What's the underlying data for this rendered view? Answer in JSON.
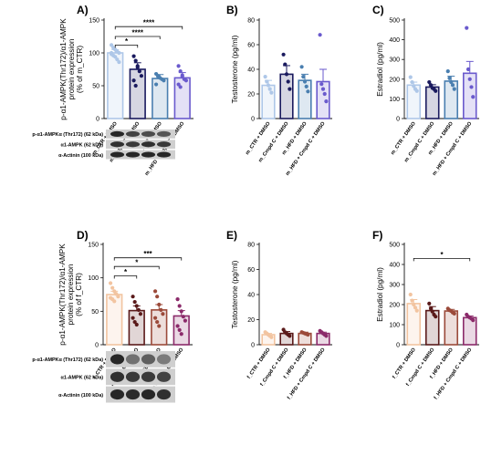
{
  "chart_data": [
    {
      "panel": "A)",
      "type": "bar",
      "ylabel": "p-α1-AMPK(Thr172)/α1-AMPK protein expression (% of m_CTR)",
      "ylim": [
        0,
        150
      ],
      "yticks": [
        0,
        50,
        100,
        150
      ],
      "categories": [
        "m_CTR + DMSO",
        "m_Cmpd C + DMSO",
        "m_HFD + DMSO",
        "m_HFD + Cmpd C + DMSO"
      ],
      "values": [
        100,
        75,
        61,
        62
      ],
      "errors": [
        5,
        10,
        6,
        8
      ],
      "colors": [
        "#aec7e8",
        "#1a1a5e",
        "#4a7fb0",
        "#6a5acd"
      ],
      "points": [
        [
          112,
          108,
          105,
          102,
          100,
          98,
          96,
          94,
          90,
          86,
          100
        ],
        [
          95,
          88,
          78,
          72,
          65,
          58,
          50,
          80
        ],
        [
          68,
          64,
          62,
          60,
          58,
          52,
          65
        ],
        [
          80,
          72,
          66,
          60,
          58,
          52,
          48,
          64
        ]
      ],
      "significance": [
        {
          "from": 0,
          "to": 3,
          "label": "****",
          "y": 140
        },
        {
          "from": 0,
          "to": 2,
          "label": "****",
          "y": 125
        },
        {
          "from": 0,
          "to": 1,
          "label": "*",
          "y": 112
        }
      ],
      "blot": {
        "rows": [
          "p-α1-AMPKα (Thr172) (62 kDa)",
          "α1-AMPK (62 kDa)",
          "α-Actinin (100 kDa)"
        ]
      }
    },
    {
      "panel": "B)",
      "type": "bar",
      "ylabel": "Testosterone (pg/ml)",
      "ylim": [
        0,
        80
      ],
      "yticks": [
        0,
        20,
        40,
        60,
        80
      ],
      "categories": [
        "m_CTR + DMSO",
        "m_Cmpd C + DMSO",
        "m_HFD + DMSO",
        "m_HFD + Cmpd C + DMSO"
      ],
      "values": [
        27,
        36,
        31,
        30
      ],
      "errors": [
        4,
        7,
        5,
        10
      ],
      "colors": [
        "#aec7e8",
        "#1a1a5e",
        "#4a7fb0",
        "#6a5acd"
      ],
      "points": [
        [
          34,
          30,
          27,
          24,
          21
        ],
        [
          52,
          44,
          36,
          30,
          24
        ],
        [
          42,
          34,
          30,
          26,
          22
        ],
        [
          68,
          28,
          24,
          20,
          14
        ]
      ],
      "significance": []
    },
    {
      "panel": "C)",
      "type": "bar",
      "ylabel": "Estradiol (pg/ml)",
      "ylim": [
        0,
        500
      ],
      "yticks": [
        0,
        100,
        200,
        300,
        400,
        500
      ],
      "categories": [
        "m_CTR + DMSO",
        "m_Cmpd C + DMSO",
        "m_HFD + DMSO",
        "m_HFD + Cmpd C + DMSO"
      ],
      "values": [
        170,
        160,
        190,
        230
      ],
      "errors": [
        15,
        12,
        25,
        60
      ],
      "colors": [
        "#aec7e8",
        "#1a1a5e",
        "#4a7fb0",
        "#6a5acd"
      ],
      "points": [
        [
          210,
          185,
          165,
          150,
          140
        ],
        [
          185,
          170,
          155,
          150,
          140
        ],
        [
          240,
          205,
          185,
          170,
          150
        ],
        [
          460,
          250,
          200,
          160,
          110
        ]
      ],
      "significance": []
    },
    {
      "panel": "D)",
      "type": "bar",
      "ylabel": "p-α1-AMPK(Thr172)/α1-AMPK protein expression (% of f_CTR)",
      "ylim": [
        0,
        150
      ],
      "yticks": [
        0,
        50,
        100,
        150
      ],
      "categories": [
        "f_CTR + DMSO",
        "f_Cmpd C + DMSO",
        "f_HFD + DMSO",
        "f_HFD + Cmpd C + DMSO"
      ],
      "values": [
        75,
        51,
        52,
        43
      ],
      "errors": [
        5,
        7,
        8,
        8
      ],
      "colors": [
        "#f2c4a0",
        "#5a1a1a",
        "#9b4a3a",
        "#8b2a6a"
      ],
      "points": [
        [
          92,
          85,
          80,
          76,
          72,
          70,
          68,
          65
        ],
        [
          72,
          64,
          58,
          52,
          46,
          40,
          34,
          30
        ],
        [
          80,
          72,
          60,
          52,
          46,
          40,
          34,
          28
        ],
        [
          68,
          58,
          50,
          42,
          36,
          28,
          22,
          16
        ]
      ],
      "significance": [
        {
          "from": 0,
          "to": 3,
          "label": "***",
          "y": 130
        },
        {
          "from": 0,
          "to": 2,
          "label": "*",
          "y": 117
        },
        {
          "from": 0,
          "to": 1,
          "label": "*",
          "y": 103
        }
      ],
      "blot": {
        "rows": [
          "p-α1-AMPKα (Thr172) (62 kDa)",
          "α1-AMPK (62 kDa)",
          "α-Actinin (100 kDa)"
        ]
      }
    },
    {
      "panel": "E)",
      "type": "bar",
      "ylabel": "Testosterone (pg/ml)",
      "ylim": [
        0,
        80
      ],
      "yticks": [
        0,
        20,
        40,
        60,
        80
      ],
      "categories": [
        "f_CTR + DMSO",
        "f_Cmpd C + DMSO",
        "f_HFD + DMSO",
        "f_HFD + Cmpd C + DMSO"
      ],
      "values": [
        8,
        9,
        9,
        9
      ],
      "errors": [
        1,
        1.5,
        1,
        1
      ],
      "colors": [
        "#f2c4a0",
        "#5a1a1a",
        "#9b4a3a",
        "#8b2a6a"
      ],
      "points": [
        [
          10,
          9,
          8,
          7,
          6
        ],
        [
          12,
          10,
          9,
          8,
          7
        ],
        [
          10,
          9.5,
          9,
          8.5,
          8
        ],
        [
          11,
          10,
          9,
          8,
          7
        ]
      ],
      "significance": []
    },
    {
      "panel": "F)",
      "type": "bar",
      "ylabel": "Estradiol (pg/ml)",
      "ylim": [
        0,
        500
      ],
      "yticks": [
        0,
        100,
        200,
        300,
        400,
        500
      ],
      "categories": [
        "f_CTR + DMSO",
        "f_Cmpd C + DMSO",
        "f_HFD + DMSO",
        "f_HFD + Cmpd C + DMSO"
      ],
      "values": [
        205,
        170,
        168,
        135
      ],
      "errors": [
        20,
        20,
        8,
        8
      ],
      "colors": [
        "#f2c4a0",
        "#5a1a1a",
        "#9b4a3a",
        "#8b2a6a"
      ],
      "points": [
        [
          250,
          220,
          200,
          185,
          170
        ],
        [
          205,
          180,
          165,
          150,
          140
        ],
        [
          180,
          172,
          168,
          160,
          155
        ],
        [
          150,
          140,
          135,
          130,
          122
        ]
      ],
      "significance": [
        {
          "from": 0,
          "to": 3,
          "label": "*",
          "y": 430
        }
      ]
    }
  ]
}
